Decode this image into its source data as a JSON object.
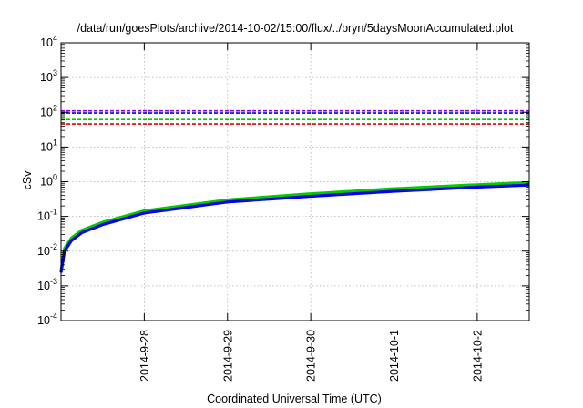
{
  "chart_data": {
    "type": "line",
    "title": "/data/run/goesPlots/archive/2014-10-02/15:00/flux/../bryn/5daysMoonAccumulated.plot",
    "xlabel": "Coordinated Universal Time (UTC)",
    "ylabel": "cSv",
    "y_scale": "log",
    "ylim_exponents": [
      -4,
      4
    ],
    "y_tick_exponents": [
      -4,
      -3,
      -2,
      -1,
      0,
      1,
      2,
      3,
      4
    ],
    "xlim": [
      "2014-09-27",
      "2014-10-02 15:00"
    ],
    "x_ticks": [
      "2014-9-28",
      "2014-9-29",
      "2014-9-30",
      "2014-10-1",
      "2014-10-2"
    ],
    "grid": true,
    "colors": {
      "red": "#e60000",
      "green": "#00cc00",
      "blue": "#0000ee",
      "purple": "#9400d3"
    },
    "series": [
      {
        "style": "dashed",
        "color": "#9400d3",
        "x": [
          "2014-09-27",
          "2014-10-02 15:00"
        ],
        "y": [
          110,
          110
        ]
      },
      {
        "style": "dashed",
        "color": "#0000ee",
        "x": [
          "2014-09-27",
          "2014-10-02 15:00"
        ],
        "y": [
          95,
          95
        ]
      },
      {
        "style": "dashed",
        "color": "#00cc00",
        "x": [
          "2014-09-27",
          "2014-10-02 15:00"
        ],
        "y": [
          62,
          62
        ]
      },
      {
        "style": "dashed",
        "color": "#e60000",
        "x": [
          "2014-09-27",
          "2014-10-02 15:00"
        ],
        "y": [
          46,
          46
        ]
      },
      {
        "style": "solid",
        "color": "#00cc00",
        "x": [
          "2014-09-27 00:00",
          "2014-09-27 01:00",
          "2014-09-27 03:00",
          "2014-09-27 06:00",
          "2014-09-27 12:00",
          "2014-09-28 00:00",
          "2014-09-29 00:00",
          "2014-09-30 00:00",
          "2014-10-01 00:00",
          "2014-10-02 00:00",
          "2014-10-02 15:00"
        ],
        "y": [
          0.0028,
          0.012,
          0.024,
          0.04,
          0.068,
          0.145,
          0.3,
          0.45,
          0.63,
          0.82,
          0.95
        ]
      },
      {
        "style": "solid",
        "color": "#0000ee",
        "x": [
          "2014-09-27 00:00",
          "2014-09-27 01:00",
          "2014-09-27 03:00",
          "2014-09-27 06:00",
          "2014-09-27 12:00",
          "2014-09-28 00:00",
          "2014-09-29 00:00",
          "2014-09-30 00:00",
          "2014-10-01 00:00",
          "2014-10-02 00:00",
          "2014-10-02 15:00"
        ],
        "y": [
          0.0024,
          0.01,
          0.02,
          0.034,
          0.058,
          0.125,
          0.26,
          0.38,
          0.53,
          0.7,
          0.8
        ]
      }
    ]
  }
}
